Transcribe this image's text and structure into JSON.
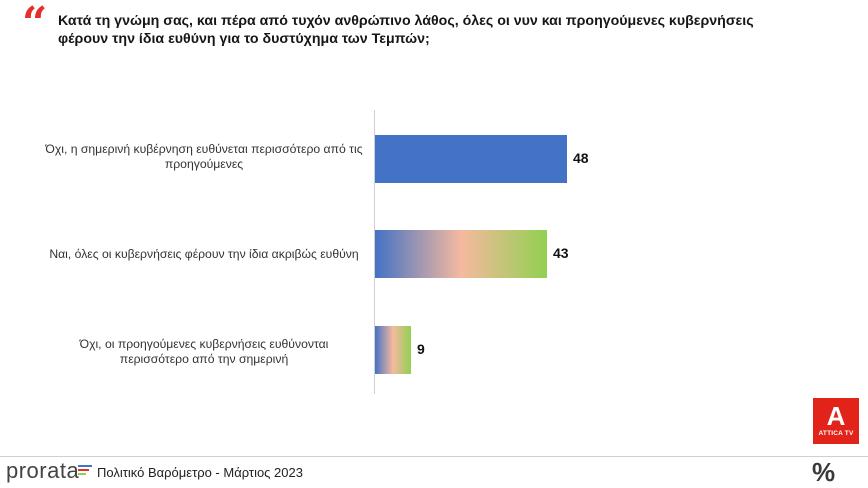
{
  "header": {
    "quote_glyph": "“",
    "question": "Κατά τη γνώμη σας, και πέρα από τυχόν ανθρώπινο λάθος, όλες οι νυν και προηγούμενες κυβερνήσεις φέρουν την ίδια ευθύνη για το δυστύχημα των Τεμπών;"
  },
  "chart_data": {
    "type": "bar",
    "orientation": "horizontal",
    "title": "Κατά τη γνώμη σας, και πέρα από τυχόν ανθρώπινο λάθος, όλες οι νυν και προηγούμενες κυβερνήσεις φέρουν την ίδια ευθύνη για το δυστύχημα των Τεμπών;",
    "categories": [
      "Όχι, η σημερινή κυβέρνηση ευθύνεται περισσότερο από τις προηγούμενες",
      "Ναι, όλες οι κυβερνήσεις φέρουν την ίδια ακριβώς ευθύνη",
      "Όχι, οι προηγούμενες κυβερνήσεις ευθύνονται περισσότερο από την σημερινή"
    ],
    "values": [
      48,
      43,
      9
    ],
    "value_labels": [
      "48",
      "43",
      "9"
    ],
    "xlim": [
      0,
      100
    ],
    "xlabel": "",
    "ylabel": "",
    "grid": false,
    "bar_colors": [
      [
        "#4472c4",
        "#4472c4"
      ],
      [
        "#4472c4",
        "#f5b9a0",
        "#92d050"
      ],
      [
        "#4472c4",
        "#f5b9a0",
        "#92d050"
      ]
    ]
  },
  "footer": {
    "brand": "prorata",
    "brand_mark_colors": [
      "#4472c4",
      "#e4302b",
      "#92d050"
    ],
    "survey": "Πολιτικό Βαρόμετρο - Μάρτιος 2023",
    "logo_glyph": "A",
    "logo_text": "ATTICA TV",
    "percent_icon": "%"
  }
}
